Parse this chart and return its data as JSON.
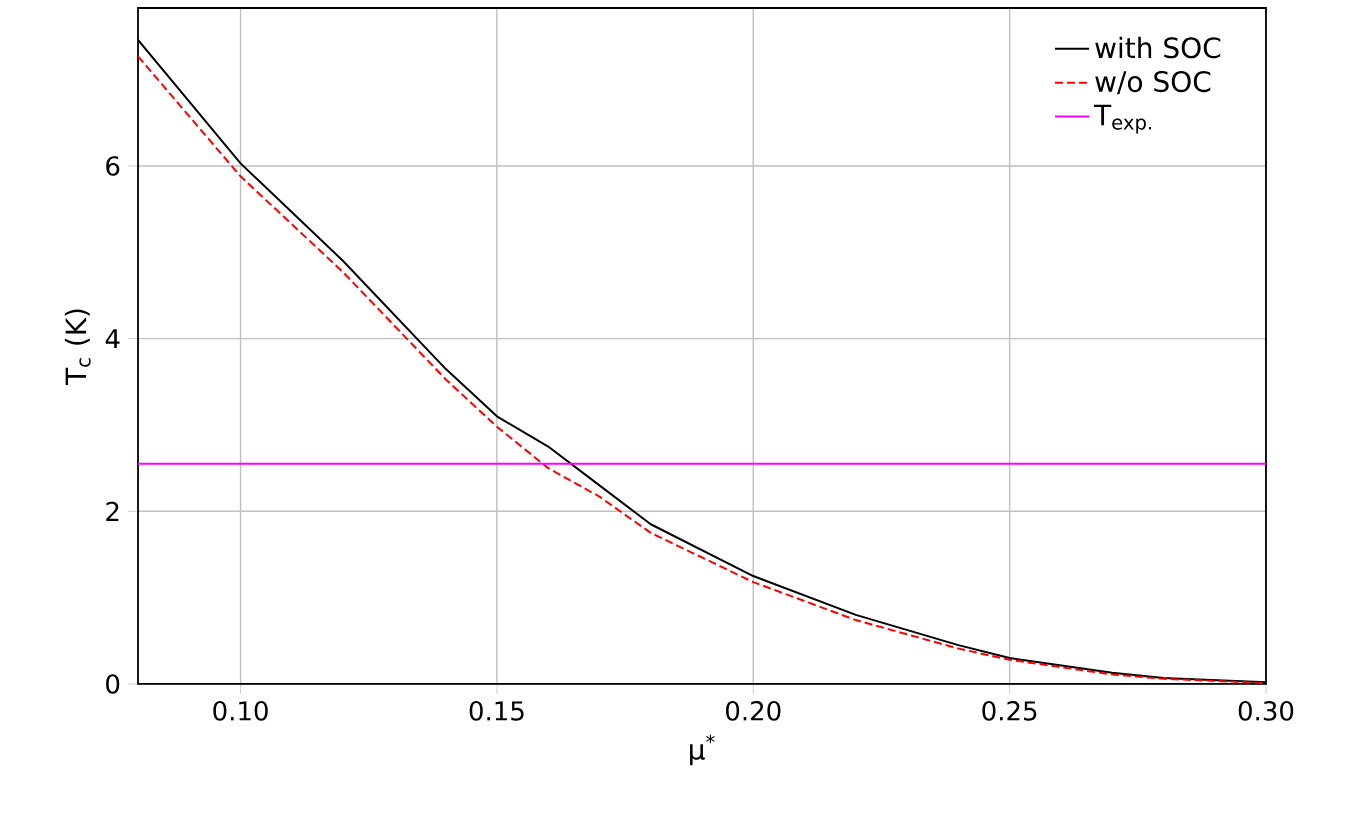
{
  "chart_data": {
    "type": "line",
    "xlabel": "μ$^{*}$",
    "ylabel": "T$_{c}$ (K)",
    "xlim": [
      0.08,
      0.3
    ],
    "ylim": [
      0,
      7.83
    ],
    "xticks": [
      {
        "value": 0.1,
        "label": "0.10"
      },
      {
        "value": 0.15,
        "label": "0.15"
      },
      {
        "value": 0.2,
        "label": "0.20"
      },
      {
        "value": 0.25,
        "label": "0.25"
      },
      {
        "value": 0.3,
        "label": "0.30"
      }
    ],
    "yticks": [
      0,
      2,
      4,
      6
    ],
    "grid": true,
    "legend": "top right",
    "marker": "none",
    "series": [
      {
        "name": "with SOC",
        "color": "#000000",
        "line_style": "solid",
        "x": [
          0.08,
          0.1,
          0.12,
          0.14,
          0.15,
          0.16,
          0.17,
          0.18,
          0.2,
          0.22,
          0.24,
          0.25,
          0.27,
          0.28,
          0.3
        ],
        "values": [
          7.46,
          6.03,
          4.9,
          3.65,
          3.1,
          2.75,
          2.3,
          1.85,
          1.25,
          0.8,
          0.45,
          0.3,
          0.13,
          0.07,
          0.02
        ]
      },
      {
        "name": "w/o SOC",
        "color": "#ff0000",
        "line_style": "dashed",
        "x": [
          0.08,
          0.1,
          0.12,
          0.14,
          0.15,
          0.16,
          0.17,
          0.18,
          0.2,
          0.22,
          0.24,
          0.25,
          0.27,
          0.28,
          0.3
        ],
        "values": [
          7.27,
          5.88,
          4.77,
          3.53,
          2.98,
          2.5,
          2.17,
          1.75,
          1.18,
          0.74,
          0.41,
          0.28,
          0.11,
          0.06,
          0.01
        ]
      },
      {
        "name": "T$_{exp.}$",
        "color": "#ff00ff",
        "line_style": "solid",
        "x": [
          0.08,
          0.3
        ],
        "values": [
          2.55,
          2.55
        ]
      }
    ]
  }
}
